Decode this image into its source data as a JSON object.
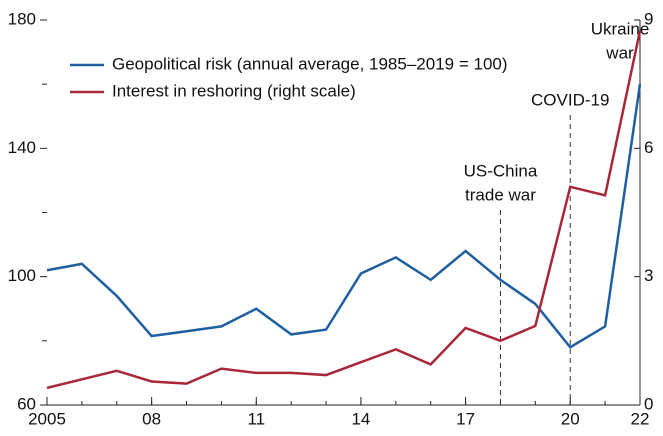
{
  "chart_data": {
    "type": "line",
    "x": [
      2005,
      2006,
      2007,
      2008,
      2009,
      2010,
      2011,
      2012,
      2013,
      2014,
      2015,
      2016,
      2017,
      2018,
      2019,
      2020,
      2021,
      2022
    ],
    "xlim": [
      2005,
      2022
    ],
    "xticks": [
      {
        "value": 2005,
        "label": "2005"
      },
      {
        "value": 2008,
        "label": "08"
      },
      {
        "value": 2011,
        "label": "11"
      },
      {
        "value": 2014,
        "label": "14"
      },
      {
        "value": 2017,
        "label": "17"
      },
      {
        "value": 2020,
        "label": "20"
      },
      {
        "value": 2022,
        "label": "22"
      }
    ],
    "ylim": [
      60,
      180
    ],
    "yticks": [
      60,
      100,
      140,
      180
    ],
    "yminorticks": [
      80,
      120,
      160
    ],
    "y2lim": [
      0,
      9
    ],
    "y2ticks": [
      0,
      3,
      6,
      9
    ],
    "legend": "upper left",
    "series": [
      {
        "name": "Geopolitical risk (annual average, 1985–2019 = 100)",
        "color": "#1f5fa0",
        "values": [
          102,
          104,
          94,
          81.5,
          83,
          84.5,
          90,
          82,
          83.5,
          101,
          106,
          99,
          108,
          99,
          91.5,
          78,
          84.5,
          160
        ]
      },
      {
        "name": "Interest in reshoring (right scale)",
        "color": "#a8283a",
        "axis": "y2",
        "values": [
          0.4,
          0.6,
          0.8,
          0.55,
          0.5,
          0.85,
          0.75,
          0.75,
          0.7,
          1.0,
          1.3,
          0.95,
          1.8,
          1.5,
          1.85,
          5.1,
          4.9,
          8.75
        ]
      }
    ],
    "annotations": [
      {
        "x": 2018,
        "lines": [
          "US-China",
          "trade war"
        ]
      },
      {
        "x": 2020,
        "lines": [
          "COVID-19"
        ]
      },
      {
        "x": 2022,
        "lines": [
          "Ukraine",
          "war"
        ]
      }
    ]
  }
}
